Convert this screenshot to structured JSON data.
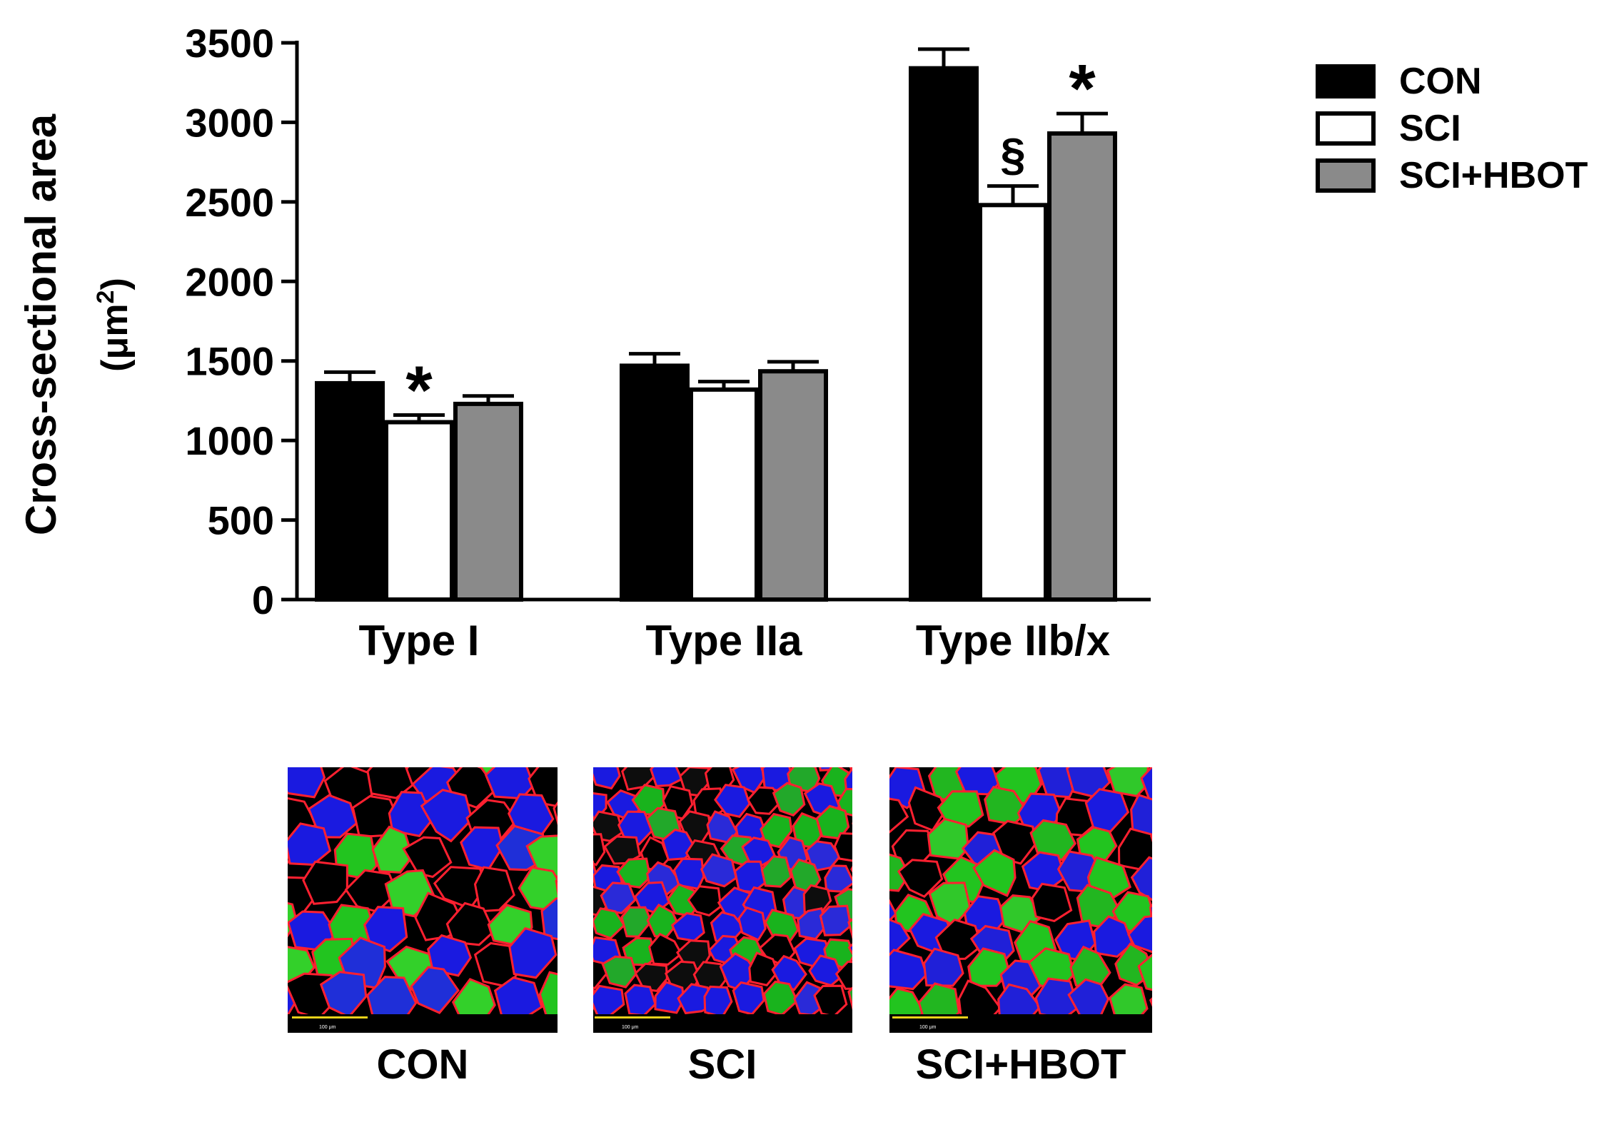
{
  "chart_data": {
    "type": "bar",
    "ylabel_line1": "Cross-sectional area",
    "ylabel_line2_prefix": "(",
    "ylabel_line2_unit": "μm",
    "ylabel_line2_sup": "2",
    "ylabel_line2_suffix": ")",
    "ylim": [
      0,
      3500
    ],
    "yticks": [
      0,
      500,
      1000,
      1500,
      2000,
      2500,
      3000,
      3500
    ],
    "categories": [
      "Type I",
      "Type IIa",
      "Type IIb/x"
    ],
    "series": [
      {
        "name": "CON",
        "color": "#000000",
        "values": [
          1360,
          1470,
          3340
        ],
        "errors": [
          70,
          75,
          120
        ]
      },
      {
        "name": "SCI",
        "color": "#ffffff",
        "values": [
          1115,
          1320,
          2480
        ],
        "errors": [
          45,
          50,
          120
        ]
      },
      {
        "name": "SCI+HBOT",
        "color": "#8a8a8a",
        "values": [
          1230,
          1435,
          2930
        ],
        "errors": [
          50,
          60,
          125
        ]
      }
    ],
    "annotations": [
      {
        "category": 0,
        "series": 1,
        "text": "*"
      },
      {
        "category": 2,
        "series": 1,
        "text": "§"
      },
      {
        "category": 2,
        "series": 2,
        "text": "*"
      }
    ],
    "legend_position": "top-right"
  },
  "micrographs": [
    {
      "label": "CON",
      "scale_text": "100 μm"
    },
    {
      "label": "SCI",
      "scale_text": "100 μm"
    },
    {
      "label": "SCI+HBOT",
      "scale_text": "100 μm"
    }
  ]
}
